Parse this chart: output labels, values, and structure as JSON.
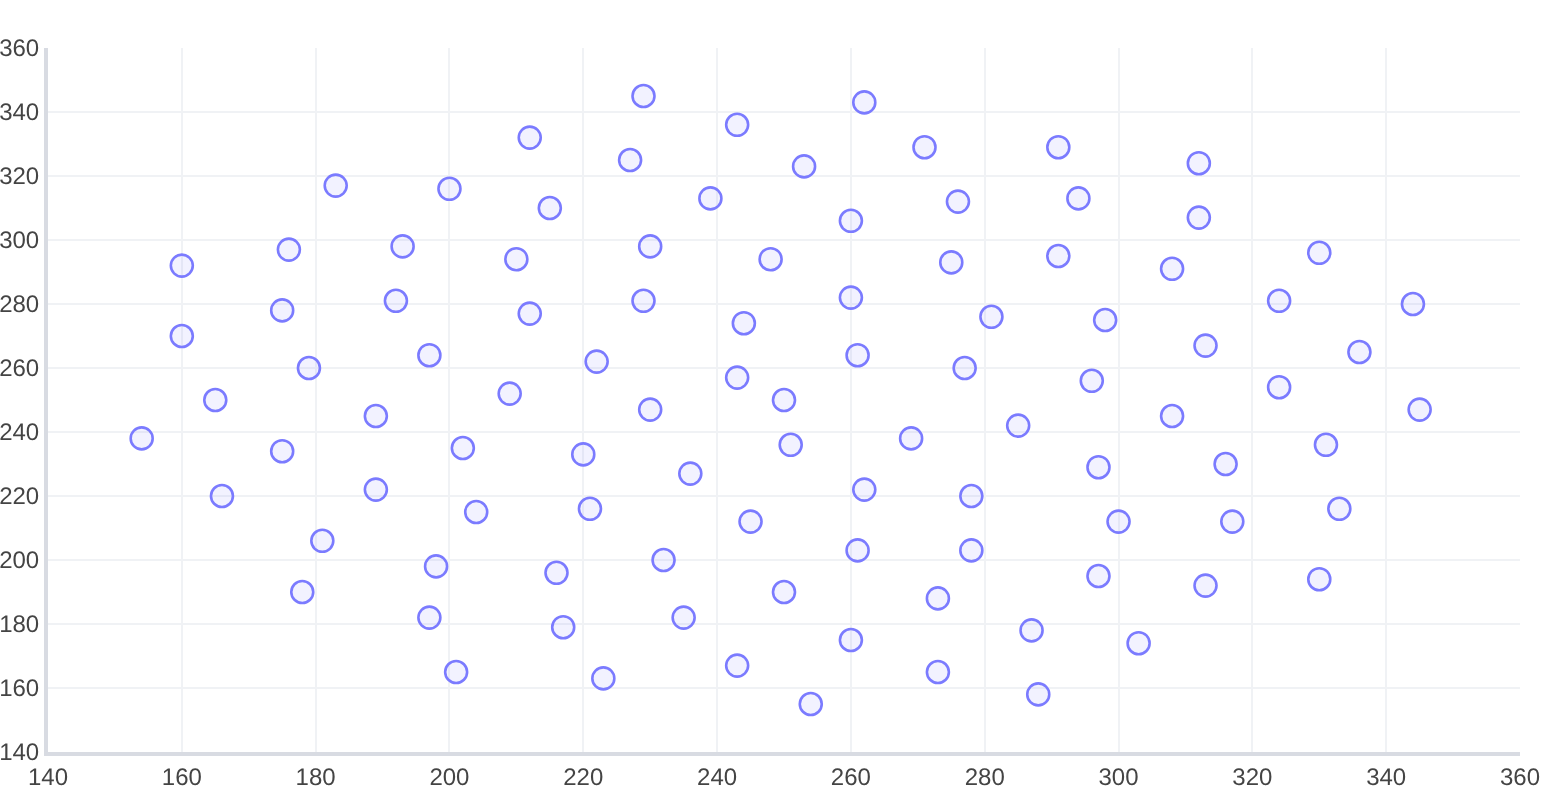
{
  "chart_data": {
    "type": "scatter",
    "marker": "circle",
    "grid": true,
    "xlim": [
      140,
      360
    ],
    "xticks": [
      140,
      160,
      180,
      200,
      220,
      240,
      260,
      280,
      300,
      320,
      340,
      360
    ],
    "ylim": [
      140,
      360
    ],
    "yticks": [
      140,
      160,
      180,
      200,
      220,
      240,
      260,
      280,
      300,
      320,
      340,
      360
    ],
    "series": [
      {
        "color": "#7b7bff",
        "x": [
          212,
          183,
          200,
          176,
          193,
          160,
          210,
          175,
          192,
          212,
          160,
          197,
          179,
          209,
          165,
          189,
          154,
          175,
          202,
          166,
          189,
          204,
          181,
          198,
          178,
          197,
          201,
          229,
          243,
          262,
          227,
          253,
          271,
          215,
          239,
          260,
          276,
          230,
          248,
          275,
          229,
          260,
          244,
          281,
          222,
          261,
          277,
          243,
          250,
          230,
          285,
          220,
          251,
          269,
          236,
          262,
          278,
          221,
          245,
          232,
          261,
          278,
          216,
          250,
          273,
          235,
          217,
          260,
          223,
          243,
          273,
          254,
          291,
          312,
          294,
          312,
          291,
          308,
          330,
          324,
          344,
          298,
          313,
          336,
          296,
          324,
          308,
          345,
          331,
          297,
          316,
          300,
          317,
          333,
          297,
          313,
          330,
          287,
          303,
          288
        ],
        "values": [
          332,
          317,
          316,
          297,
          298,
          292,
          294,
          278,
          281,
          277,
          270,
          264,
          260,
          252,
          250,
          245,
          238,
          234,
          235,
          220,
          222,
          215,
          206,
          198,
          190,
          182,
          165,
          345,
          336,
          343,
          325,
          323,
          329,
          310,
          313,
          306,
          312,
          298,
          294,
          293,
          281,
          282,
          274,
          276,
          262,
          264,
          260,
          257,
          250,
          247,
          242,
          233,
          236,
          238,
          227,
          222,
          220,
          216,
          212,
          200,
          203,
          203,
          196,
          190,
          188,
          182,
          179,
          175,
          163,
          167,
          165,
          155,
          329,
          324,
          313,
          307,
          295,
          291,
          296,
          281,
          280,
          275,
          267,
          265,
          256,
          254,
          245,
          247,
          236,
          229,
          230,
          212,
          212,
          216,
          195,
          192,
          194,
          178,
          174,
          158
        ]
      }
    ]
  }
}
